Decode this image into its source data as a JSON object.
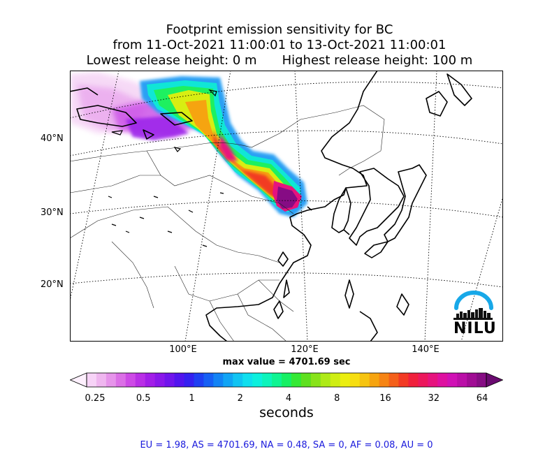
{
  "title": {
    "line1": "Footprint emission sensitivity for BC",
    "line2": "from 11-Oct-2021 11:00:01 to 13-Oct-2021 11:00:01",
    "lowest": "Lowest release height: 0 m",
    "highest": "Highest release height: 100 m"
  },
  "map": {
    "lat_labels": [
      "40°N",
      "30°N",
      "20°N"
    ],
    "lon_labels": [
      "100°E",
      "120°E",
      "140°E"
    ],
    "logo_text": "NILU",
    "plume_region": "Central Asia to northern China (Beijing area)"
  },
  "max_value": "max value = 4701.69 sec",
  "colorbar": {
    "tick_labels": [
      "0.25",
      "0.5",
      "1",
      "2",
      "4",
      "8",
      "16",
      "32",
      "64"
    ],
    "units_label": "seconds",
    "colors": [
      "#fdf0fd",
      "#f7d3f7",
      "#efb6ef",
      "#e694ea",
      "#db6fe6",
      "#cd4ae6",
      "#b92fe6",
      "#a21ee8",
      "#8a17ea",
      "#7014ec",
      "#5214ee",
      "#3520f0",
      "#1f3ff2",
      "#1660f4",
      "#1283f4",
      "#10a4f4",
      "#10c4f2",
      "#0fdfee",
      "#0cf0dd",
      "#0cf4bb",
      "#0ef492",
      "#16f064",
      "#34e935",
      "#5ee01f",
      "#88e31a",
      "#aeea17",
      "#cfee13",
      "#ebee10",
      "#f6de10",
      "#f6c410",
      "#f6a410",
      "#f68414",
      "#f4601a",
      "#f23a24",
      "#f0203c",
      "#ec175c",
      "#e6137e",
      "#de10a0",
      "#d011b5",
      "#ba0fa7",
      "#a00c94",
      "#860c84",
      "#6a0a70"
    ]
  },
  "footer": "EU = 1.98,  AS = 4701.69,  NA = 0.48,  SA = 0,  AF = 0.08,  AU = 0"
}
